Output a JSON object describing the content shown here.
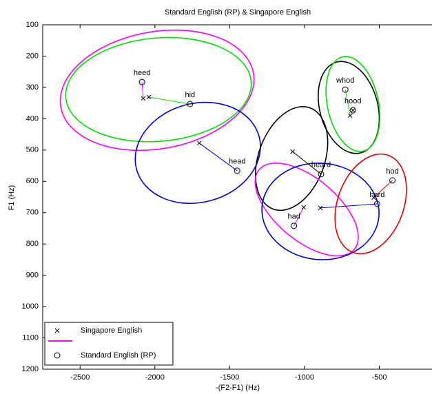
{
  "chart_data": {
    "type": "scatter",
    "title": "Standard English (RP) & Singapore English",
    "x_label": "-(F2-F1) (Hz)",
    "y_label": "F1 (Hz)",
    "xlim": [
      -2750,
      0
    ],
    "ylim": [
      100,
      1200
    ],
    "y_inverted": true,
    "xticks": [
      -2500,
      -2000,
      -1500,
      -1000,
      -500,
      0
    ],
    "yticks": [
      100,
      200,
      300,
      400,
      500,
      600,
      700,
      800,
      900,
      1000,
      1100,
      1200
    ],
    "legend": "lower left",
    "categories": [
      "heed",
      "hid",
      "head",
      "heard",
      "had",
      "hard",
      "hod",
      "hood",
      "whod"
    ],
    "colors": [
      "#ff00ff",
      "#00dd00",
      "#0000dd",
      "#000000",
      "#ff00ff",
      "#0000dd",
      "#dd0000",
      "#000000",
      "#00dd00"
    ],
    "series": [
      {
        "name": "Singapore English",
        "marker": "x",
        "color": "#000000",
        "x": [
          -2078,
          -2041,
          -1703,
          -1079,
          -1005,
          -894,
          -537,
          -676,
          -694
        ],
        "values": [
          335,
          331,
          478,
          505,
          683,
          685,
          652,
          373,
          390
        ]
      },
      {
        "name": "Standard English (RP)",
        "marker": "o",
        "color": "#000000",
        "x": [
          -2086,
          -1765,
          -1450,
          -889,
          -1070,
          -514,
          -412,
          -676,
          -727
        ],
        "values": [
          283,
          353,
          566,
          577,
          742,
          672,
          597,
          373,
          307
        ]
      }
    ],
    "ellipses": [
      {
        "color": "#ff00ff",
        "cx": -1985,
        "cy": 309,
        "a": 654,
        "b": 187,
        "angle": -10
      },
      {
        "color": "#00dd00",
        "cx": -1976,
        "cy": 307,
        "a": 622,
        "b": 165,
        "angle": -5
      },
      {
        "color": "#0000dd",
        "cx": -1713,
        "cy": 509,
        "a": 424,
        "b": 158,
        "angle": -15
      },
      {
        "color": "#000000",
        "cx": -1086,
        "cy": 527,
        "a": 221,
        "b": 172,
        "angle": 20
      },
      {
        "color": "#ff00ff",
        "cx": -985,
        "cy": 690,
        "a": 415,
        "b": 99,
        "angle": 40
      },
      {
        "color": "#0000dd",
        "cx": -893,
        "cy": 696,
        "a": 392,
        "b": 154,
        "angle": 5
      },
      {
        "color": "#dd0000",
        "cx": -557,
        "cy": 672,
        "a": 221,
        "b": 165,
        "angle": 20
      },
      {
        "color": "#000000",
        "cx": -704,
        "cy": 364,
        "a": 194,
        "b": 150,
        "angle": -15
      },
      {
        "color": "#00dd00",
        "cx": -676,
        "cy": 353,
        "a": 171,
        "b": 154,
        "angle": -12
      }
    ]
  }
}
